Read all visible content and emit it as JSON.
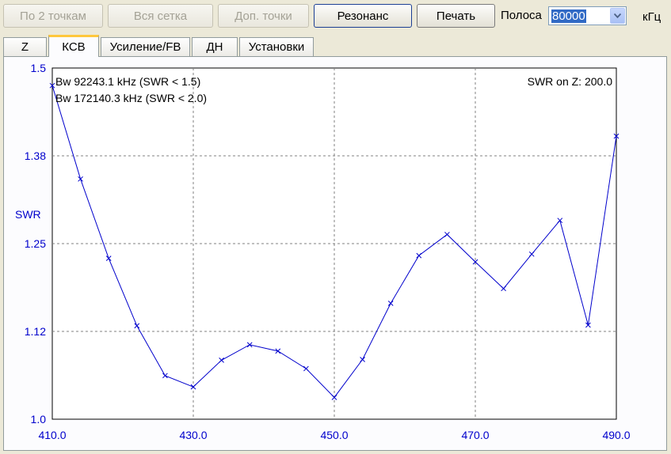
{
  "toolbar": {
    "by_2_points": "По 2 точкам",
    "whole_grid": "Вся сетка",
    "extra_points": "Доп. точки",
    "resonance": "Резонанс",
    "print": "Печать",
    "band_label": "Полоса",
    "band_value": "80000",
    "band_unit": "кГц"
  },
  "tabs": [
    {
      "label": "Z"
    },
    {
      "label": "КСВ"
    },
    {
      "label": "Усиление/FB"
    },
    {
      "label": "ДН"
    },
    {
      "label": "Установки"
    }
  ],
  "colors": {
    "series": "#0000cc",
    "axis_text": "#0000cc"
  },
  "chart_data": {
    "type": "line",
    "title": "",
    "xlabel": "",
    "ylabel": "SWR",
    "xlim": [
      410,
      490
    ],
    "ylim": [
      1.0,
      1.5
    ],
    "x_ticks": [
      "410.0",
      "430.0",
      "450.0",
      "470.0",
      "490.0"
    ],
    "y_ticks": [
      "1.0",
      "1.12",
      "1.25",
      "1.38",
      "1.5"
    ],
    "y_tick_values": [
      1.0,
      1.125,
      1.25,
      1.375,
      1.5
    ],
    "grid": true,
    "annotations": [
      "Bw 92243.1 kHz (SWR < 1.5)",
      "Bw 172140.3 kHz (SWR < 2.0)",
      "SWR on Z: 200.0"
    ],
    "series": [
      {
        "x": [
          410,
          414,
          418,
          422,
          426,
          430,
          434,
          438,
          442,
          446,
          450,
          454,
          458,
          462,
          466,
          470,
          474,
          478,
          482,
          486,
          490
        ],
        "y": [
          1.475,
          1.342,
          1.229,
          1.133,
          1.062,
          1.046,
          1.084,
          1.106,
          1.097,
          1.072,
          1.031,
          1.085,
          1.165,
          1.233,
          1.263,
          1.224,
          1.186,
          1.235,
          1.283,
          1.134,
          1.403
        ]
      }
    ]
  }
}
